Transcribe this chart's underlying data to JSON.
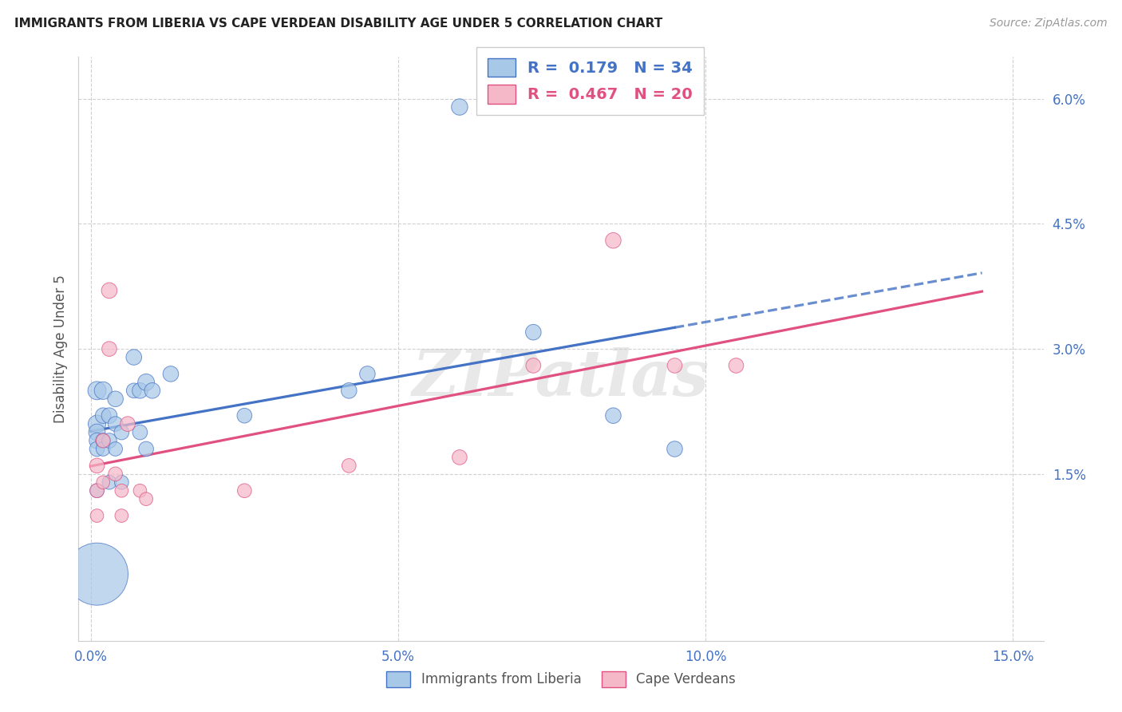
{
  "title": "IMMIGRANTS FROM LIBERIA VS CAPE VERDEAN DISABILITY AGE UNDER 5 CORRELATION CHART",
  "source": "Source: ZipAtlas.com",
  "ylabel": "Disability Age Under 5",
  "legend_liberia": "Immigrants from Liberia",
  "legend_cape": "Cape Verdeans",
  "r_liberia": 0.179,
  "n_liberia": 34,
  "r_cape": 0.467,
  "n_cape": 20,
  "xlim": [
    -0.002,
    0.155
  ],
  "ylim": [
    -0.005,
    0.065
  ],
  "xticks": [
    0.0,
    0.05,
    0.1,
    0.15
  ],
  "xtick_labels": [
    "0.0%",
    "5.0%",
    "10.0%",
    "15.0%"
  ],
  "yticks": [
    0.015,
    0.03,
    0.045,
    0.06
  ],
  "ytick_labels": [
    "1.5%",
    "3.0%",
    "4.5%",
    "6.0%"
  ],
  "color_liberia": "#a8c8e8",
  "color_cape": "#f4b8c8",
  "line_color_liberia": "#4472c4",
  "line_color_cape": "#e05080",
  "liberia_x": [
    0.001,
    0.001,
    0.001,
    0.001,
    0.001,
    0.001,
    0.001,
    0.002,
    0.002,
    0.002,
    0.002,
    0.003,
    0.003,
    0.003,
    0.004,
    0.004,
    0.004,
    0.005,
    0.005,
    0.007,
    0.007,
    0.008,
    0.008,
    0.009,
    0.009,
    0.01,
    0.013,
    0.025,
    0.042,
    0.045,
    0.06,
    0.072,
    0.085,
    0.095
  ],
  "liberia_y": [
    0.025,
    0.021,
    0.02,
    0.019,
    0.018,
    0.013,
    0.003,
    0.025,
    0.022,
    0.019,
    0.018,
    0.022,
    0.019,
    0.014,
    0.024,
    0.021,
    0.018,
    0.02,
    0.014,
    0.029,
    0.025,
    0.025,
    0.02,
    0.026,
    0.018,
    0.025,
    0.027,
    0.022,
    0.025,
    0.027,
    0.059,
    0.032,
    0.022,
    0.018
  ],
  "liberia_sizes": [
    30,
    28,
    25,
    22,
    20,
    18,
    350,
    28,
    22,
    20,
    18,
    22,
    20,
    18,
    22,
    20,
    18,
    20,
    18,
    22,
    20,
    22,
    20,
    25,
    20,
    22,
    22,
    20,
    22,
    22,
    24,
    22,
    22,
    22
  ],
  "cape_x": [
    0.001,
    0.001,
    0.001,
    0.002,
    0.002,
    0.003,
    0.003,
    0.004,
    0.005,
    0.005,
    0.006,
    0.008,
    0.009,
    0.025,
    0.042,
    0.06,
    0.072,
    0.085,
    0.095,
    0.105
  ],
  "cape_y": [
    0.016,
    0.013,
    0.01,
    0.019,
    0.014,
    0.037,
    0.03,
    0.015,
    0.013,
    0.01,
    0.021,
    0.013,
    0.012,
    0.013,
    0.016,
    0.017,
    0.028,
    0.043,
    0.028,
    0.028
  ],
  "cape_sizes": [
    20,
    18,
    16,
    18,
    16,
    22,
    20,
    18,
    16,
    16,
    20,
    16,
    16,
    18,
    18,
    20,
    20,
    22,
    20,
    20
  ],
  "watermark": "ZIPatlas",
  "bg_color": "#ffffff",
  "grid_color": "#d0d0d0"
}
